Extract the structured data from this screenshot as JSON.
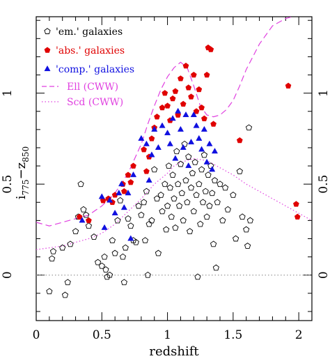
{
  "chart_data": {
    "type": "scatter",
    "xlabel": "redshift",
    "ylabel": "i",
    "ylabel_sub1": "775",
    "ylabel_mid": "−z",
    "ylabel_sub2": "850",
    "xlim": [
      0,
      2.1
    ],
    "ylim": [
      -0.25,
      1.42
    ],
    "x_ticks": [
      0,
      0.5,
      1,
      1.5,
      2
    ],
    "x_tick_labels": [
      "0",
      "0.5",
      "1",
      "1.5",
      "2"
    ],
    "y_ticks": [
      0,
      0.5,
      1
    ],
    "y_tick_labels": [
      "0",
      "0.5",
      "1"
    ],
    "zero_line": 0,
    "legend_position": "top-left",
    "legend": [
      {
        "label": "'em.' galaxies",
        "marker": "open-pentagon",
        "color": "#000000"
      },
      {
        "label": "'abs.' galaxies",
        "marker": "filled-pentagon",
        "color": "#e00000"
      },
      {
        "label": "'comp.' galaxies",
        "marker": "filled-triangle",
        "color": "#1010e0"
      },
      {
        "label": "Ell (CWW)",
        "line": "dashed",
        "color": "#e040e0"
      },
      {
        "label": "Scd (CWW)",
        "line": "dotted",
        "color": "#e040e0"
      }
    ],
    "series": [
      {
        "name": "'em.' galaxies",
        "marker": "open-pentagon",
        "color": "#000000",
        "points": [
          [
            0.1,
            -0.09
          ],
          [
            0.12,
            0.09
          ],
          [
            0.13,
            0.13
          ],
          [
            0.2,
            0.15
          ],
          [
            0.22,
            -0.11
          ],
          [
            0.24,
            -0.04
          ],
          [
            0.26,
            0.17
          ],
          [
            0.3,
            0.24
          ],
          [
            0.32,
            0.32
          ],
          [
            0.34,
            0.5
          ],
          [
            0.36,
            0.36
          ],
          [
            0.38,
            0.33
          ],
          [
            0.4,
            0.27
          ],
          [
            0.44,
            0.21
          ],
          [
            0.47,
            0.07
          ],
          [
            0.5,
            0.05
          ],
          [
            0.52,
            0.1
          ],
          [
            0.53,
            0.03
          ],
          [
            0.54,
            -0.01
          ],
          [
            0.56,
            0.0
          ],
          [
            0.58,
            0.19
          ],
          [
            0.6,
            0.12
          ],
          [
            0.62,
            0.3
          ],
          [
            0.64,
            0.41
          ],
          [
            0.66,
            0.1
          ],
          [
            0.67,
            -0.04
          ],
          [
            0.68,
            0.15
          ],
          [
            0.7,
            0.31
          ],
          [
            0.72,
            0.27
          ],
          [
            0.74,
            0.19
          ],
          [
            0.76,
            0.18
          ],
          [
            0.78,
            0.38
          ],
          [
            0.8,
            0.33
          ],
          [
            0.82,
            0.4
          ],
          [
            0.83,
            0.19
          ],
          [
            0.84,
            0.46
          ],
          [
            0.85,
            0.0
          ],
          [
            0.86,
            0.28
          ],
          [
            0.88,
            0.3
          ],
          [
            0.9,
            0.58
          ],
          [
            0.92,
            0.42
          ],
          [
            0.93,
            0.12
          ],
          [
            0.95,
            0.44
          ],
          [
            0.96,
            0.35
          ],
          [
            0.98,
            0.5
          ],
          [
            0.99,
            0.25
          ],
          [
            1.0,
            0.38
          ],
          [
            1.01,
            0.6
          ],
          [
            1.02,
            0.48
          ],
          [
            1.03,
            0.32
          ],
          [
            1.04,
            0.55
          ],
          [
            1.05,
            0.42
          ],
          [
            1.06,
            0.26
          ],
          [
            1.07,
            0.68
          ],
          [
            1.08,
            0.5
          ],
          [
            1.09,
            0.38
          ],
          [
            1.1,
            0.61
          ],
          [
            1.11,
            0.45
          ],
          [
            1.12,
            0.3
          ],
          [
            1.13,
            0.72
          ],
          [
            1.14,
            0.52
          ],
          [
            1.15,
            0.4
          ],
          [
            1.16,
            0.65
          ],
          [
            1.17,
            0.24
          ],
          [
            1.18,
            0.48
          ],
          [
            1.19,
            0.56
          ],
          [
            1.2,
            0.35
          ],
          [
            1.21,
            0.62
          ],
          [
            1.22,
            0.44
          ],
          [
            1.23,
            -0.01
          ],
          [
            1.24,
            0.5
          ],
          [
            1.25,
            0.28
          ],
          [
            1.26,
            0.58
          ],
          [
            1.27,
            0.4
          ],
          [
            1.28,
            0.66
          ],
          [
            1.29,
            0.46
          ],
          [
            1.3,
            0.32
          ],
          [
            1.31,
            0.55
          ],
          [
            1.32,
            0.38
          ],
          [
            1.33,
            0.6
          ],
          [
            1.34,
            0.45
          ],
          [
            1.35,
            0.17
          ],
          [
            1.36,
            0.52
          ],
          [
            1.37,
            0.04
          ],
          [
            1.38,
            0.4
          ],
          [
            1.4,
            0.5
          ],
          [
            1.42,
            0.3
          ],
          [
            1.44,
            0.48
          ],
          [
            1.46,
            0.36
          ],
          [
            1.5,
            0.44
          ],
          [
            1.52,
            0.2
          ],
          [
            1.55,
            0.57
          ],
          [
            1.57,
            0.32
          ],
          [
            1.6,
            0.25
          ],
          [
            1.61,
            0.16
          ],
          [
            1.62,
            0.81
          ],
          [
            1.63,
            0.3
          ]
        ]
      },
      {
        "name": "'abs.' galaxies",
        "marker": "filled-pentagon",
        "color": "#e00000",
        "points": [
          [
            0.33,
            0.32
          ],
          [
            0.4,
            0.3
          ],
          [
            0.51,
            0.41
          ],
          [
            0.55,
            0.42
          ],
          [
            0.58,
            0.4
          ],
          [
            0.6,
            0.44
          ],
          [
            0.66,
            0.5
          ],
          [
            0.67,
            0.46
          ],
          [
            0.7,
            0.55
          ],
          [
            0.72,
            0.51
          ],
          [
            0.74,
            0.6
          ],
          [
            0.82,
            0.69
          ],
          [
            0.84,
            0.57
          ],
          [
            0.86,
            0.65
          ],
          [
            0.88,
            0.75
          ],
          [
            0.9,
            0.81
          ],
          [
            0.92,
            0.87
          ],
          [
            0.96,
            0.92
          ],
          [
            0.98,
            1.0
          ],
          [
            1.0,
            0.93
          ],
          [
            1.02,
            0.85
          ],
          [
            1.04,
            0.97
          ],
          [
            1.06,
            1.01
          ],
          [
            1.08,
            0.88
          ],
          [
            1.1,
            1.08
          ],
          [
            1.12,
            0.94
          ],
          [
            1.14,
            1.15
          ],
          [
            1.16,
            1.03
          ],
          [
            1.18,
            0.98
          ],
          [
            1.2,
            1.1
          ],
          [
            1.22,
            0.9
          ],
          [
            1.24,
            1.02
          ],
          [
            1.26,
            0.92
          ],
          [
            1.28,
            0.86
          ],
          [
            1.3,
            1.1
          ],
          [
            1.31,
            1.25
          ],
          [
            1.33,
            1.24
          ],
          [
            1.35,
            0.83
          ],
          [
            1.55,
            0.74
          ],
          [
            1.92,
            1.04
          ],
          [
            1.98,
            0.39
          ],
          [
            1.99,
            0.32
          ]
        ]
      },
      {
        "name": "'comp.' galaxies",
        "marker": "filled-triangle",
        "color": "#1010e0",
        "points": [
          [
            0.35,
            0.3
          ],
          [
            0.5,
            0.43
          ],
          [
            0.52,
            0.26
          ],
          [
            0.56,
            0.41
          ],
          [
            0.6,
            0.34
          ],
          [
            0.63,
            0.45
          ],
          [
            0.65,
            0.5
          ],
          [
            0.67,
            0.37
          ],
          [
            0.7,
            0.45
          ],
          [
            0.72,
            0.2
          ],
          [
            0.74,
            0.55
          ],
          [
            0.8,
            0.75
          ],
          [
            0.84,
            0.72
          ],
          [
            0.86,
            0.52
          ],
          [
            0.88,
            0.66
          ],
          [
            0.9,
            0.8
          ],
          [
            0.93,
            0.7
          ],
          [
            0.96,
            0.82
          ],
          [
            1.0,
            0.78
          ],
          [
            1.02,
            0.72
          ],
          [
            1.04,
            0.86
          ],
          [
            1.06,
            0.64
          ],
          [
            1.08,
            0.9
          ],
          [
            1.1,
            0.8
          ],
          [
            1.12,
            0.7
          ],
          [
            1.14,
            0.88
          ],
          [
            1.16,
            0.6
          ],
          [
            1.18,
            0.73
          ],
          [
            1.2,
            0.88
          ],
          [
            1.22,
            0.82
          ],
          [
            1.24,
            0.75
          ],
          [
            1.26,
            0.69
          ],
          [
            1.28,
            0.8
          ],
          [
            1.3,
            0.62
          ],
          [
            1.32,
            0.72
          ],
          [
            1.34,
            0.58
          ],
          [
            1.36,
            0.68
          ]
        ]
      }
    ],
    "curves": [
      {
        "name": "Ell (CWW)",
        "line": "dashed",
        "color": "#e040e0",
        "x": [
          0.0,
          0.1,
          0.2,
          0.3,
          0.4,
          0.5,
          0.6,
          0.7,
          0.8,
          0.85,
          0.9,
          0.95,
          1.0,
          1.05,
          1.1,
          1.15,
          1.2,
          1.25,
          1.3,
          1.35,
          1.4,
          1.45,
          1.5,
          1.55,
          1.6,
          1.7,
          1.8,
          1.9,
          2.0,
          2.1
        ],
        "y": [
          0.29,
          0.27,
          0.29,
          0.31,
          0.33,
          0.38,
          0.45,
          0.56,
          0.72,
          0.83,
          0.93,
          1.02,
          1.09,
          1.14,
          1.17,
          1.14,
          1.04,
          0.93,
          0.88,
          0.87,
          0.88,
          0.91,
          0.96,
          1.04,
          1.13,
          1.27,
          1.37,
          1.41,
          1.43,
          1.45
        ]
      },
      {
        "name": "Scd (CWW)",
        "line": "dotted",
        "color": "#e040e0",
        "x": [
          0.0,
          0.1,
          0.2,
          0.3,
          0.4,
          0.5,
          0.6,
          0.7,
          0.8,
          0.9,
          1.0,
          1.05,
          1.1,
          1.15,
          1.2,
          1.3,
          1.4,
          1.5,
          1.6,
          1.7,
          1.8,
          1.9,
          2.0,
          2.1
        ],
        "y": [
          0.14,
          0.15,
          0.16,
          0.18,
          0.2,
          0.23,
          0.28,
          0.35,
          0.42,
          0.5,
          0.56,
          0.6,
          0.62,
          0.63,
          0.64,
          0.63,
          0.59,
          0.55,
          0.5,
          0.46,
          0.42,
          0.38,
          0.34,
          0.3
        ]
      }
    ]
  }
}
